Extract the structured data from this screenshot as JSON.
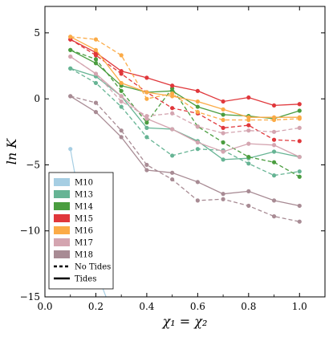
{
  "chart_data": {
    "type": "line",
    "xlabel": "χ₁ = χ₂",
    "ylabel": "ln K",
    "xlim": [
      0.0,
      1.1
    ],
    "ylim": [
      -15,
      7
    ],
    "xticks": [
      "0.0",
      "0.2",
      "0.4",
      "0.6",
      "0.8",
      "1.0"
    ],
    "xtick_values": [
      0.0,
      0.2,
      0.4,
      0.6,
      0.8,
      1.0
    ],
    "yticks": [
      "5",
      "0",
      "−5",
      "−10",
      "−15"
    ],
    "ytick_values": [
      5,
      0,
      -5,
      -10,
      -15
    ],
    "grid": false,
    "legend_position": "lower-left",
    "legend": [
      {
        "label": "M10",
        "color": "#a6cee3",
        "kind": "patch"
      },
      {
        "label": "M13",
        "color": "#66b494",
        "kind": "patch"
      },
      {
        "label": "M14",
        "color": "#4a9d3f",
        "kind": "patch"
      },
      {
        "label": "M15",
        "color": "#e0373b",
        "kind": "patch"
      },
      {
        "label": "M16",
        "color": "#fbab47",
        "kind": "patch"
      },
      {
        "label": "M17",
        "color": "#d4a5b0",
        "kind": "patch"
      },
      {
        "label": "M18",
        "color": "#a88b94",
        "kind": "patch"
      },
      {
        "label": "No Tides",
        "color": "#000000",
        "kind": "dashed"
      },
      {
        "label": "Tides",
        "color": "#000000",
        "kind": "solid"
      }
    ],
    "x": [
      0.1,
      0.2,
      0.3,
      0.4,
      0.5,
      0.6,
      0.7,
      0.8,
      0.9,
      1.0
    ],
    "series": [
      {
        "name": "M10",
        "style": "solid",
        "color": "#a6cee3",
        "x": [
          0.1,
          0.13,
          0.16,
          0.2,
          0.25,
          0.3
        ],
        "values": [
          -3.8,
          -7.0,
          -10.2,
          -13.0,
          -15.5,
          -17.5
        ]
      },
      {
        "name": "M13",
        "style": "solid",
        "color": "#66b494",
        "values": [
          2.3,
          1.7,
          0.2,
          -2.2,
          -2.3,
          -3.2,
          -4.6,
          -4.5,
          -4.0,
          -4.4
        ]
      },
      {
        "name": "M13",
        "style": "dashed",
        "color": "#66b494",
        "values": [
          2.3,
          1.2,
          -0.6,
          -2.9,
          -4.3,
          -3.8,
          -3.9,
          -4.9,
          -5.8,
          -5.5
        ]
      },
      {
        "name": "M14",
        "style": "solid",
        "color": "#4a9d3f",
        "values": [
          3.7,
          2.7,
          1.0,
          0.5,
          0.6,
          -0.6,
          -1.2,
          -1.3,
          -1.5,
          -0.9
        ]
      },
      {
        "name": "M14",
        "style": "dashed",
        "color": "#4a9d3f",
        "values": [
          3.7,
          3.0,
          0.6,
          -1.8,
          0.8,
          -2.1,
          -3.3,
          -4.4,
          -4.8,
          -5.9
        ]
      },
      {
        "name": "M15",
        "style": "solid",
        "color": "#e0373b",
        "values": [
          4.5,
          3.5,
          2.1,
          1.6,
          1.0,
          0.6,
          -0.2,
          0.1,
          -0.5,
          -0.4
        ]
      },
      {
        "name": "M15",
        "style": "dashed",
        "color": "#e0373b",
        "values": [
          4.5,
          3.3,
          1.9,
          0.5,
          -0.7,
          -1.1,
          -2.2,
          -2.0,
          -3.1,
          -3.2
        ]
      },
      {
        "name": "M16",
        "style": "solid",
        "color": "#fbab47",
        "values": [
          4.7,
          3.7,
          1.2,
          0.5,
          0.2,
          -0.2,
          -0.8,
          -1.4,
          -1.4,
          -1.4
        ]
      },
      {
        "name": "M16",
        "style": "dashed",
        "color": "#fbab47",
        "values": [
          4.7,
          4.5,
          3.3,
          0.0,
          0.4,
          -1.0,
          -1.6,
          -1.6,
          -1.6,
          -1.5
        ]
      },
      {
        "name": "M17",
        "style": "solid",
        "color": "#d4a5b0",
        "values": [
          3.2,
          1.9,
          0.2,
          -1.5,
          -2.3,
          -3.3,
          -4.0,
          -3.4,
          -3.5,
          -4.4
        ]
      },
      {
        "name": "M17",
        "style": "dashed",
        "color": "#d4a5b0",
        "values": [
          3.2,
          1.9,
          -0.2,
          -1.3,
          -1.1,
          -2.1,
          -2.6,
          -2.4,
          -2.5,
          -2.2
        ]
      },
      {
        "name": "M18",
        "style": "solid",
        "color": "#a88b94",
        "values": [
          0.2,
          -1.0,
          -2.9,
          -5.4,
          -5.6,
          -6.3,
          -7.2,
          -7.0,
          -7.7,
          -8.1
        ]
      },
      {
        "name": "M18",
        "style": "dashed",
        "color": "#a88b94",
        "values": [
          0.2,
          -0.3,
          -2.4,
          -5.0,
          -6.1,
          -7.7,
          -7.6,
          -8.1,
          -8.9,
          -9.3
        ]
      }
    ]
  }
}
